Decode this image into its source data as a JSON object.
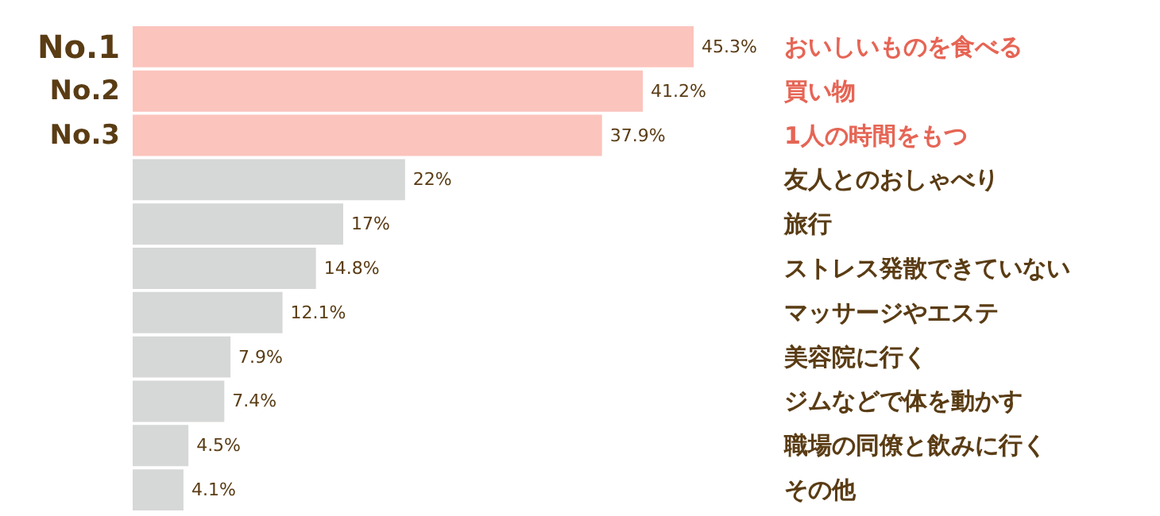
{
  "chart_data": {
    "type": "bar",
    "orientation": "horizontal",
    "categories": [
      "おいしいものを食べる",
      "買い物",
      "1人の時間をもつ",
      "友人とのおしゃべり",
      "旅行",
      "ストレス発散できていない",
      "マッサージやエステ",
      "美容院に行く",
      "ジムなどで体を動かす",
      "職場の同僚と飲みに行く",
      "その他"
    ],
    "values": [
      45.3,
      41.2,
      37.9,
      22,
      17,
      14.8,
      12.1,
      7.9,
      7.4,
      4.5,
      4.1
    ],
    "colors": [
      "#fbc4bd",
      "#fbc4bd",
      "#fbc4bd",
      "#d5d8d6",
      "#d5d8d6",
      "#d5d8d6",
      "#d5d8d6",
      "#d5d8d6",
      "#d5d8d6",
      "#d5d8d6",
      "#d5d8d6"
    ],
    "value_labels": [
      "45.3%",
      "41.2%",
      "37.9%",
      "22%",
      "17%",
      "14.8%",
      "12.1%",
      "7.9%",
      "7.4%",
      "4.5%",
      "4.1%"
    ],
    "annotations": [
      "No.1",
      "No.2",
      "No.3"
    ]
  }
}
